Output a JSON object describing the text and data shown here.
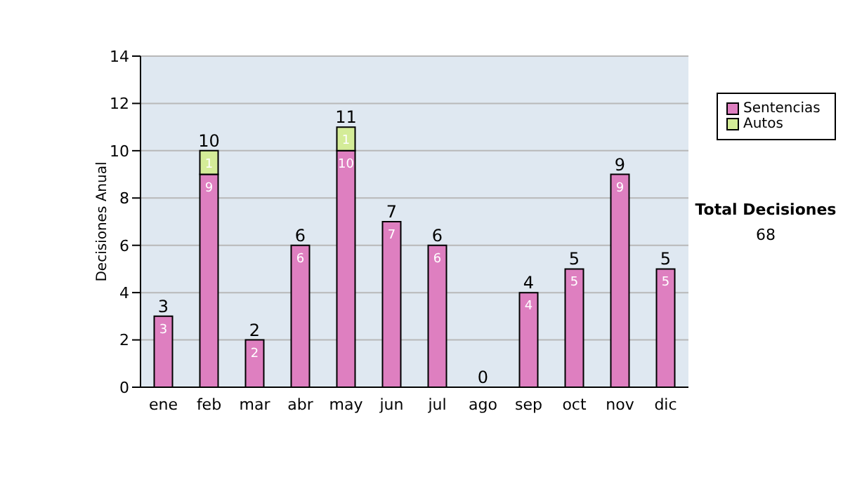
{
  "chart_data": {
    "type": "bar",
    "stacked": true,
    "ylabel": "Decisiones Anual",
    "categories": [
      "ene",
      "feb",
      "mar",
      "abr",
      "may",
      "jun",
      "jul",
      "ago",
      "sep",
      "oct",
      "nov",
      "dic"
    ],
    "series": [
      {
        "name": "Sentencias",
        "color": "#de7fc0",
        "values": [
          3,
          9,
          2,
          6,
          10,
          7,
          6,
          0,
          4,
          5,
          9,
          5
        ],
        "value_labels": [
          "3",
          "9",
          "2",
          "6",
          "10",
          "7",
          "6",
          null,
          "4",
          "5",
          "9",
          "5"
        ]
      },
      {
        "name": "Autos",
        "color": "#d4ec98",
        "values": [
          0,
          1,
          0,
          0,
          1,
          0,
          0,
          0,
          0,
          0,
          0,
          0
        ],
        "value_labels": [
          null,
          "1",
          null,
          null,
          "1",
          null,
          null,
          null,
          null,
          null,
          null,
          null
        ]
      }
    ],
    "totals": [
      "3",
      "10",
      "2",
      "6",
      "11",
      "7",
      "6",
      "0",
      "4",
      "5",
      "9",
      "5"
    ],
    "ylim": [
      0,
      14
    ],
    "yticks": [
      0,
      2,
      4,
      6,
      8,
      10,
      12,
      14
    ],
    "grid": "y",
    "legend": "right",
    "annotations": [
      "Total Decisiones",
      "68"
    ]
  }
}
